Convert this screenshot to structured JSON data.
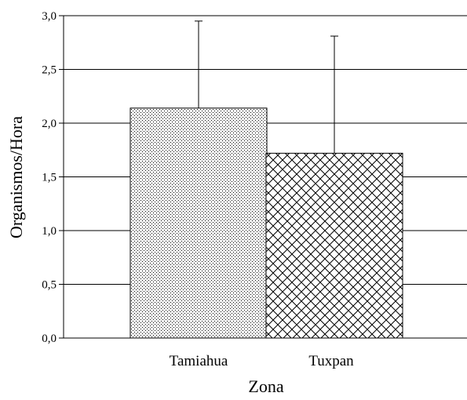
{
  "chart_data": {
    "type": "bar",
    "categories": [
      "Tamiahua",
      "Tuxpan"
    ],
    "values": [
      2.14,
      1.72
    ],
    "error_upper": [
      2.95,
      2.81
    ],
    "patterns": [
      "dots",
      "crosshatch"
    ],
    "xlabel": "Zona",
    "ylabel": "Organismos/Hora",
    "ylim": [
      0,
      3.0
    ],
    "yticks": [
      "0,0",
      "0,5",
      "1,0",
      "1,5",
      "2,0",
      "2,5",
      "3,0"
    ],
    "ytick_values": [
      0,
      0.5,
      1.0,
      1.5,
      2.0,
      2.5,
      3.0
    ],
    "grid": true,
    "colors": {
      "bar_fill": "#ffffff",
      "stroke": "#000000",
      "pattern": "#000000"
    }
  }
}
